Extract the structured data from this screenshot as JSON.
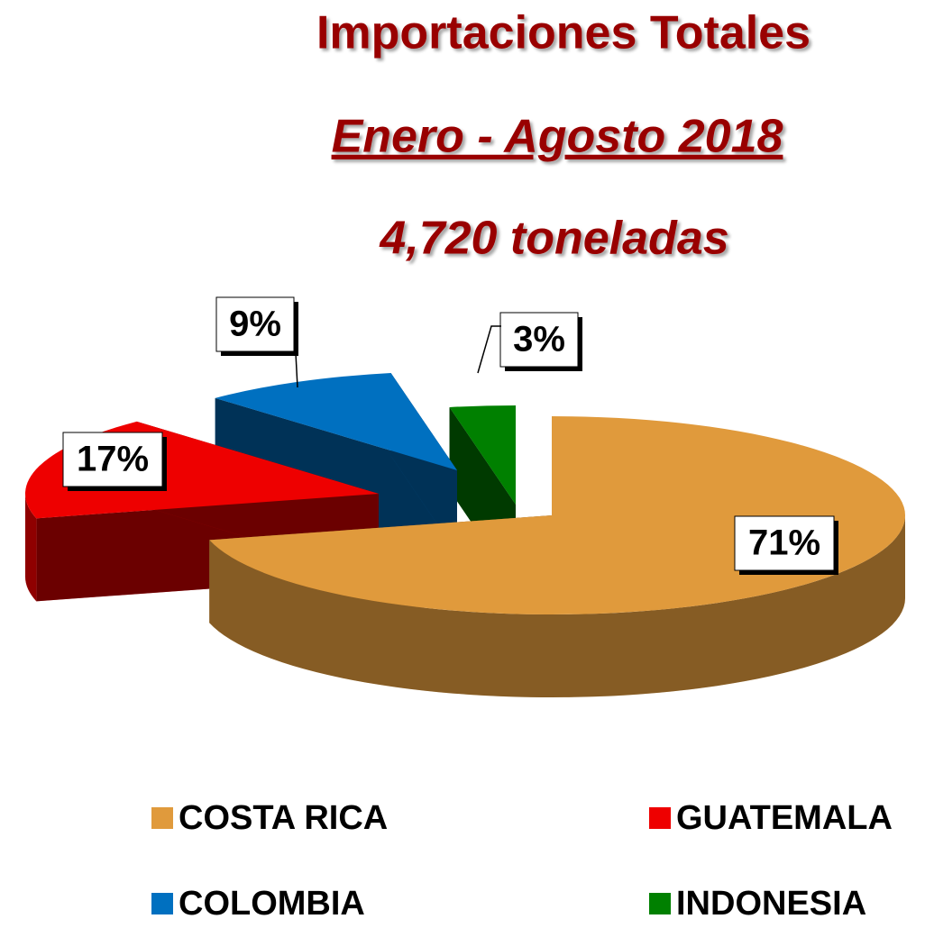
{
  "chart_data": {
    "type": "pie",
    "title": "Importaciones Totales",
    "subtitle": "Enero  - Agosto 2018",
    "annotation": "4,720  toneladas",
    "categories": [
      "COSTA RICA",
      "GUATEMALA",
      "COLOMBIA",
      "INDONESIA"
    ],
    "values": [
      71,
      17,
      9,
      3
    ],
    "value_labels": [
      "71%",
      "17%",
      "9%",
      "3%"
    ],
    "colors": [
      "#e09a3c",
      "#ee0000",
      "#0070c0",
      "#008000"
    ],
    "legend": "bottom"
  }
}
